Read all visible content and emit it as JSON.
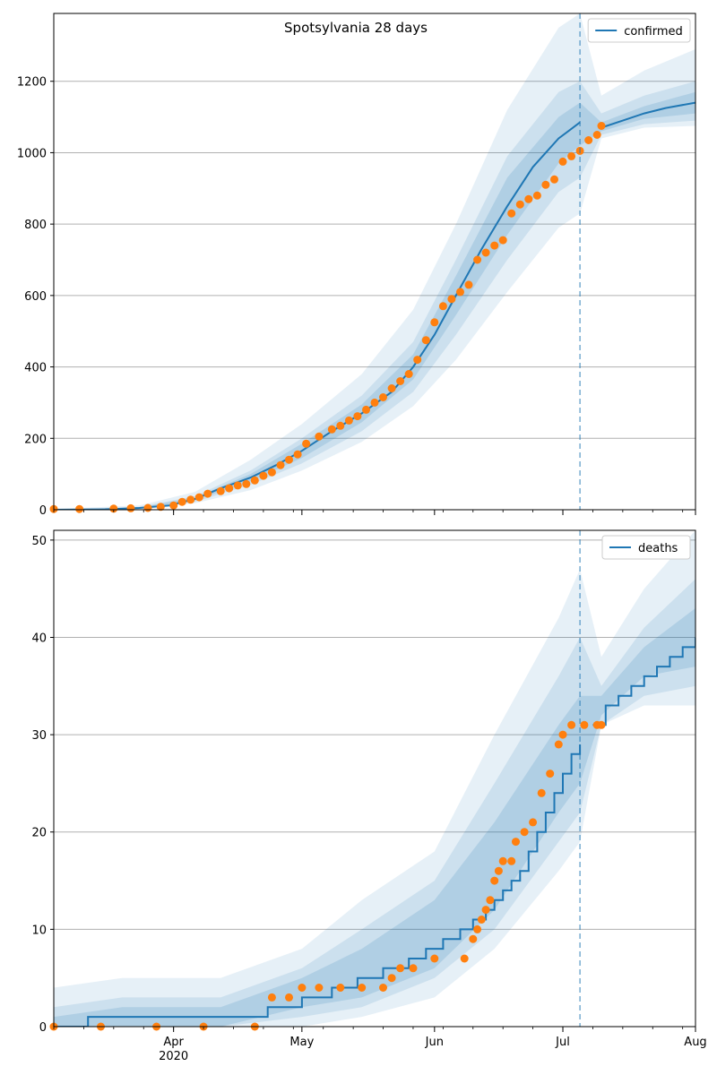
{
  "title": "Spotsylvania 28 days",
  "chart_data": [
    {
      "type": "line",
      "title": "Spotsylvania 28 days",
      "x_tick_labels": [
        {
          "date": "2020-04-01",
          "label": "Apr",
          "sublabel": "2020"
        },
        {
          "date": "2020-05-01",
          "label": "May",
          "sublabel": ""
        },
        {
          "date": "2020-06-01",
          "label": "Jun",
          "sublabel": ""
        },
        {
          "date": "2020-07-01",
          "label": "Jul",
          "sublabel": ""
        },
        {
          "date": "2020-08-01",
          "label": "Aug",
          "sublabel": ""
        }
      ],
      "xlim": [
        "2020-03-04",
        "2020-08-01"
      ],
      "ylim": [
        0,
        1390
      ],
      "y_ticks": [
        "0",
        "200",
        "400",
        "600",
        "800",
        "1000",
        "1200"
      ],
      "grid": "horizontal",
      "legend": {
        "placement": "top-right",
        "entries": [
          "confirmed"
        ]
      },
      "colors": {
        "model": "#1f77b4",
        "observed": "#ff7f0e"
      },
      "forecast_start": "2020-07-05",
      "series": [
        {
          "name": "confirmed",
          "kind": "model-line",
          "x": [
            "2020-03-04",
            "2020-03-16",
            "2020-03-24",
            "2020-03-31",
            "2020-04-06",
            "2020-04-12",
            "2020-04-19",
            "2020-04-25",
            "2020-05-01",
            "2020-05-08",
            "2020-05-15",
            "2020-05-22",
            "2020-05-27",
            "2020-06-01",
            "2020-06-06",
            "2020-06-12",
            "2020-06-18",
            "2020-06-24",
            "2020-06-30",
            "2020-07-05",
            "2020-07-10",
            "2020-07-15",
            "2020-07-20",
            "2020-07-25",
            "2020-08-01"
          ],
          "y": [
            0,
            1,
            5,
            12,
            30,
            60,
            90,
            125,
            165,
            220,
            270,
            330,
            400,
            490,
            600,
            730,
            850,
            960,
            1040,
            1085,
            1070,
            1090,
            1110,
            1125,
            1140
          ]
        },
        {
          "name": "90% band",
          "kind": "band",
          "x": [
            "2020-03-04",
            "2020-03-24",
            "2020-04-06",
            "2020-04-19",
            "2020-05-01",
            "2020-05-15",
            "2020-05-27",
            "2020-06-06",
            "2020-06-18",
            "2020-06-30",
            "2020-07-05",
            "2020-07-10",
            "2020-07-20",
            "2020-08-01"
          ],
          "low": [
            0,
            2,
            18,
            55,
            110,
            190,
            290,
            420,
            610,
            790,
            830,
            1040,
            1070,
            1075
          ],
          "high": [
            2,
            12,
            50,
            140,
            240,
            380,
            560,
            800,
            1120,
            1350,
            1390,
            1160,
            1230,
            1290
          ]
        },
        {
          "name": "75% band",
          "kind": "band",
          "x": [
            "2020-03-04",
            "2020-03-24",
            "2020-04-06",
            "2020-04-19",
            "2020-05-01",
            "2020-05-15",
            "2020-05-27",
            "2020-06-06",
            "2020-06-18",
            "2020-06-30",
            "2020-07-05",
            "2020-07-10",
            "2020-07-20",
            "2020-08-01"
          ],
          "low": [
            0,
            3,
            22,
            70,
            130,
            220,
            330,
            490,
            700,
            890,
            930,
            1050,
            1080,
            1090
          ],
          "high": [
            1,
            8,
            38,
            110,
            200,
            320,
            470,
            700,
            990,
            1170,
            1200,
            1110,
            1160,
            1200
          ]
        },
        {
          "name": "50% band",
          "kind": "band",
          "x": [
            "2020-03-04",
            "2020-03-24",
            "2020-04-06",
            "2020-04-19",
            "2020-05-01",
            "2020-05-15",
            "2020-05-27",
            "2020-06-06",
            "2020-06-18",
            "2020-06-30",
            "2020-07-05",
            "2020-07-10",
            "2020-07-20",
            "2020-08-01"
          ],
          "low": [
            0,
            4,
            26,
            80,
            145,
            245,
            365,
            545,
            770,
            970,
            1020,
            1060,
            1095,
            1110
          ],
          "high": [
            1,
            6,
            34,
            100,
            185,
            295,
            435,
            655,
            930,
            1100,
            1140,
            1085,
            1130,
            1170
          ]
        },
        {
          "name": "observed confirmed",
          "kind": "points",
          "x": [
            "2020-03-04",
            "2020-03-10",
            "2020-03-18",
            "2020-03-22",
            "2020-03-26",
            "2020-03-29",
            "2020-04-01",
            "2020-04-03",
            "2020-04-05",
            "2020-04-07",
            "2020-04-09",
            "2020-04-12",
            "2020-04-14",
            "2020-04-16",
            "2020-04-18",
            "2020-04-20",
            "2020-04-22",
            "2020-04-24",
            "2020-04-26",
            "2020-04-28",
            "2020-04-30",
            "2020-05-02",
            "2020-05-05",
            "2020-05-08",
            "2020-05-10",
            "2020-05-12",
            "2020-05-14",
            "2020-05-16",
            "2020-05-18",
            "2020-05-20",
            "2020-05-22",
            "2020-05-24",
            "2020-05-26",
            "2020-05-28",
            "2020-05-30",
            "2020-06-01",
            "2020-06-03",
            "2020-06-05",
            "2020-06-07",
            "2020-06-09",
            "2020-06-11",
            "2020-06-13",
            "2020-06-15",
            "2020-06-17",
            "2020-06-19",
            "2020-06-21",
            "2020-06-23",
            "2020-06-25",
            "2020-06-27",
            "2020-06-29",
            "2020-07-01",
            "2020-07-03",
            "2020-07-05",
            "2020-07-07",
            "2020-07-09",
            "2020-07-10"
          ],
          "y": [
            2,
            2,
            3,
            4,
            5,
            8,
            12,
            22,
            28,
            35,
            45,
            52,
            60,
            68,
            72,
            82,
            95,
            105,
            125,
            140,
            155,
            185,
            205,
            225,
            235,
            250,
            262,
            280,
            300,
            315,
            340,
            360,
            380,
            420,
            475,
            525,
            570,
            590,
            610,
            630,
            700,
            720,
            740,
            755,
            830,
            855,
            870,
            880,
            910,
            925,
            975,
            990,
            1005,
            1035,
            1050,
            1075
          ]
        }
      ]
    },
    {
      "type": "line",
      "title": "",
      "x_tick_labels": [
        {
          "date": "2020-04-01",
          "label": "Apr",
          "sublabel": "2020"
        },
        {
          "date": "2020-05-01",
          "label": "May",
          "sublabel": ""
        },
        {
          "date": "2020-06-01",
          "label": "Jun",
          "sublabel": ""
        },
        {
          "date": "2020-07-01",
          "label": "Jul",
          "sublabel": ""
        },
        {
          "date": "2020-08-01",
          "label": "Aug",
          "sublabel": ""
        }
      ],
      "xlim": [
        "2020-03-04",
        "2020-08-01"
      ],
      "ylim": [
        0,
        51
      ],
      "y_ticks": [
        "0",
        "10",
        "20",
        "30",
        "40",
        "50"
      ],
      "grid": "horizontal",
      "legend": {
        "placement": "top-right",
        "entries": [
          "deaths"
        ]
      },
      "colors": {
        "model": "#1f77b4",
        "observed": "#ff7f0e"
      },
      "forecast_start": "2020-07-05",
      "series": [
        {
          "name": "deaths",
          "kind": "model-step",
          "x": [
            "2020-03-04",
            "2020-03-12",
            "2020-04-12",
            "2020-04-23",
            "2020-05-01",
            "2020-05-08",
            "2020-05-14",
            "2020-05-20",
            "2020-05-26",
            "2020-05-30",
            "2020-06-03",
            "2020-06-07",
            "2020-06-10",
            "2020-06-13",
            "2020-06-15",
            "2020-06-17",
            "2020-06-19",
            "2020-06-21",
            "2020-06-23",
            "2020-06-25",
            "2020-06-27",
            "2020-06-29",
            "2020-07-01",
            "2020-07-03",
            "2020-07-05",
            "2020-07-08",
            "2020-07-11",
            "2020-07-14",
            "2020-07-17",
            "2020-07-20",
            "2020-07-23",
            "2020-07-26",
            "2020-07-29",
            "2020-08-01"
          ],
          "y": [
            0,
            1,
            1,
            2,
            3,
            4,
            5,
            6,
            7,
            8,
            9,
            10,
            11,
            12,
            13,
            14,
            15,
            16,
            18,
            20,
            22,
            24,
            26,
            28,
            29,
            31,
            33,
            34,
            35,
            36,
            37,
            38,
            39,
            40
          ]
        },
        {
          "name": "90% band",
          "kind": "band",
          "x": [
            "2020-03-04",
            "2020-03-20",
            "2020-04-12",
            "2020-05-01",
            "2020-05-15",
            "2020-06-01",
            "2020-06-15",
            "2020-06-30",
            "2020-07-05",
            "2020-07-10",
            "2020-07-20",
            "2020-08-01"
          ],
          "low": [
            0,
            0,
            0,
            0,
            1,
            3,
            8,
            16,
            19,
            31,
            33,
            33
          ],
          "high": [
            4,
            5,
            5,
            8,
            13,
            18,
            30,
            42,
            47,
            38,
            45,
            51
          ]
        },
        {
          "name": "75% band",
          "kind": "band",
          "x": [
            "2020-03-04",
            "2020-03-20",
            "2020-04-12",
            "2020-05-01",
            "2020-05-15",
            "2020-06-01",
            "2020-06-15",
            "2020-06-30",
            "2020-07-05",
            "2020-07-10",
            "2020-07-20",
            "2020-08-01"
          ],
          "low": [
            0,
            0,
            0,
            1,
            2,
            5,
            10,
            19,
            22,
            31,
            34,
            35
          ],
          "high": [
            2,
            3,
            3,
            6,
            10,
            15,
            25,
            36,
            40,
            35,
            41,
            46
          ]
        },
        {
          "name": "50% band",
          "kind": "band",
          "x": [
            "2020-03-04",
            "2020-03-20",
            "2020-04-12",
            "2020-05-01",
            "2020-05-15",
            "2020-06-01",
            "2020-06-15",
            "2020-06-30",
            "2020-07-05",
            "2020-07-10",
            "2020-07-20",
            "2020-08-01"
          ],
          "low": [
            0,
            0,
            0,
            2,
            3,
            6,
            12,
            22,
            25,
            32,
            36,
            37
          ],
          "high": [
            1,
            2,
            2,
            5,
            8,
            13,
            21,
            31,
            34,
            34,
            39,
            43
          ]
        },
        {
          "name": "observed deaths",
          "kind": "points",
          "x": [
            "2020-03-04",
            "2020-03-15",
            "2020-03-28",
            "2020-04-08",
            "2020-04-20",
            "2020-04-24",
            "2020-04-28",
            "2020-05-01",
            "2020-05-05",
            "2020-05-10",
            "2020-05-15",
            "2020-05-20",
            "2020-05-22",
            "2020-05-24",
            "2020-05-27",
            "2020-06-01",
            "2020-06-08",
            "2020-06-10",
            "2020-06-11",
            "2020-06-12",
            "2020-06-13",
            "2020-06-14",
            "2020-06-15",
            "2020-06-16",
            "2020-06-17",
            "2020-06-19",
            "2020-06-20",
            "2020-06-22",
            "2020-06-24",
            "2020-06-26",
            "2020-06-28",
            "2020-06-30",
            "2020-07-01",
            "2020-07-03",
            "2020-07-06",
            "2020-07-09",
            "2020-07-10"
          ],
          "y": [
            0,
            0,
            0,
            0,
            0,
            3,
            3,
            4,
            4,
            4,
            4,
            4,
            5,
            6,
            6,
            7,
            7,
            9,
            10,
            11,
            12,
            13,
            15,
            16,
            17,
            17,
            19,
            20,
            21,
            24,
            26,
            29,
            30,
            31,
            31,
            31,
            31
          ]
        }
      ]
    }
  ]
}
